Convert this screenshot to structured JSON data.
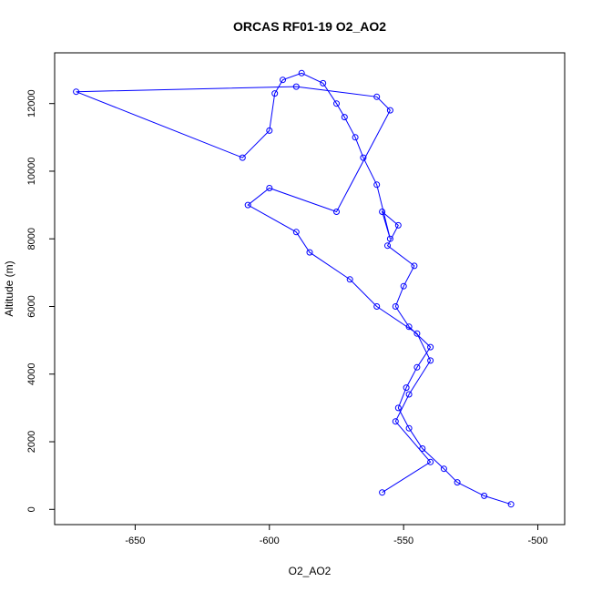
{
  "chart_data": {
    "type": "scatter",
    "title": "ORCAS RF01-19 O2_AO2",
    "xlabel": "O2_AO2",
    "ylabel": "Altitude (m)",
    "xlim": [
      -680,
      -490
    ],
    "ylim": [
      -450,
      13500
    ],
    "x_ticks": [
      -650,
      -600,
      -550,
      -500
    ],
    "y_ticks": [
      0,
      2000,
      4000,
      6000,
      8000,
      10000,
      12000
    ],
    "x_tick_labels": [
      "-650",
      "-600",
      "-550",
      "-500"
    ],
    "y_tick_labels": [
      "0",
      "2000",
      "4000",
      "6000",
      "8000",
      "10000",
      "12000"
    ],
    "grid": false,
    "series": [
      {
        "color": "#0000ff",
        "marker": "open-circle",
        "line": true,
        "x": [
          -510,
          -520,
          -530,
          -535,
          -543,
          -548,
          -552,
          -549,
          -545,
          -540,
          -548,
          -553,
          -550,
          -546,
          -556,
          -552,
          -558,
          -555,
          -560,
          -565,
          -568,
          -572,
          -575,
          -580,
          -588,
          -595,
          -598,
          -600,
          -610,
          -672,
          -590,
          -560,
          -555,
          -575,
          -600,
          -608,
          -590,
          -585,
          -570,
          -560,
          -545,
          -540,
          -548,
          -553,
          -540,
          -558
        ],
        "y": [
          150,
          400,
          800,
          1200,
          1800,
          2400,
          3000,
          3600,
          4200,
          4800,
          5400,
          6000,
          6600,
          7200,
          7800,
          8400,
          8800,
          8000,
          9600,
          10400,
          11000,
          11600,
          12000,
          12600,
          12900,
          12700,
          12300,
          11200,
          10400,
          12350,
          12500,
          12200,
          11800,
          8800,
          9500,
          9000,
          8200,
          7600,
          6800,
          6000,
          5200,
          4400,
          3400,
          2600,
          1400,
          500
        ]
      }
    ]
  }
}
